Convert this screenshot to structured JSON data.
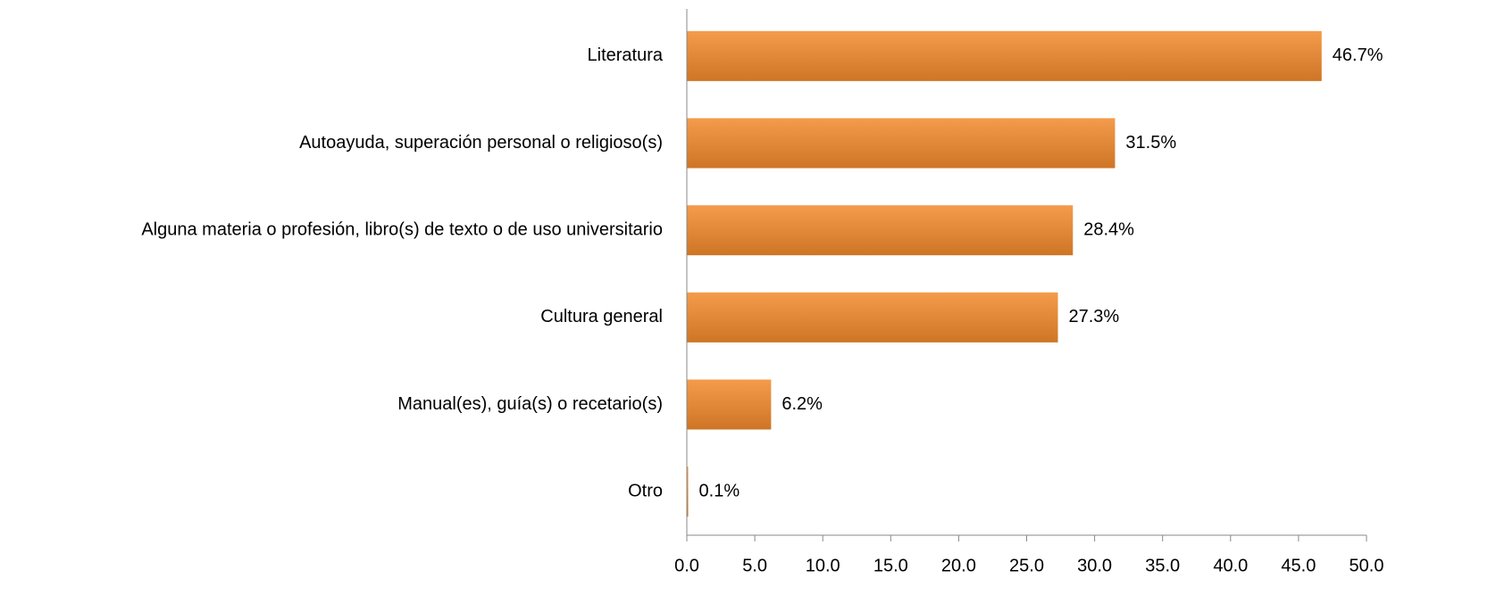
{
  "chart_data": {
    "type": "bar",
    "orientation": "horizontal",
    "categories": [
      "Literatura",
      "Autoayuda, superación personal o religioso(s)",
      "Alguna materia o profesión, libro(s) de texto o de uso universitario",
      "Cultura general",
      "Manual(es), guía(s) o recetario(s)",
      "Otro"
    ],
    "values": [
      46.7,
      31.5,
      28.4,
      27.3,
      6.2,
      0.1
    ],
    "value_labels": [
      "46.7%",
      "31.5%",
      "28.4%",
      "27.3%",
      "6.2%",
      "0.1%"
    ],
    "color": "#f28a2c",
    "xlim": [
      0,
      50
    ],
    "xticks": [
      {
        "value": 0,
        "label": "0.0"
      },
      {
        "value": 5,
        "label": "5.0"
      },
      {
        "value": 10,
        "label": "10.0"
      },
      {
        "value": 15,
        "label": "15.0"
      },
      {
        "value": 20,
        "label": "20.0"
      },
      {
        "value": 25,
        "label": "25.0"
      },
      {
        "value": 30,
        "label": "30.0"
      },
      {
        "value": 35,
        "label": "35.0"
      },
      {
        "value": 40,
        "label": "40.0"
      },
      {
        "value": 45,
        "label": "45.0"
      },
      {
        "value": 50,
        "label": "50.0"
      }
    ],
    "grid": false
  }
}
